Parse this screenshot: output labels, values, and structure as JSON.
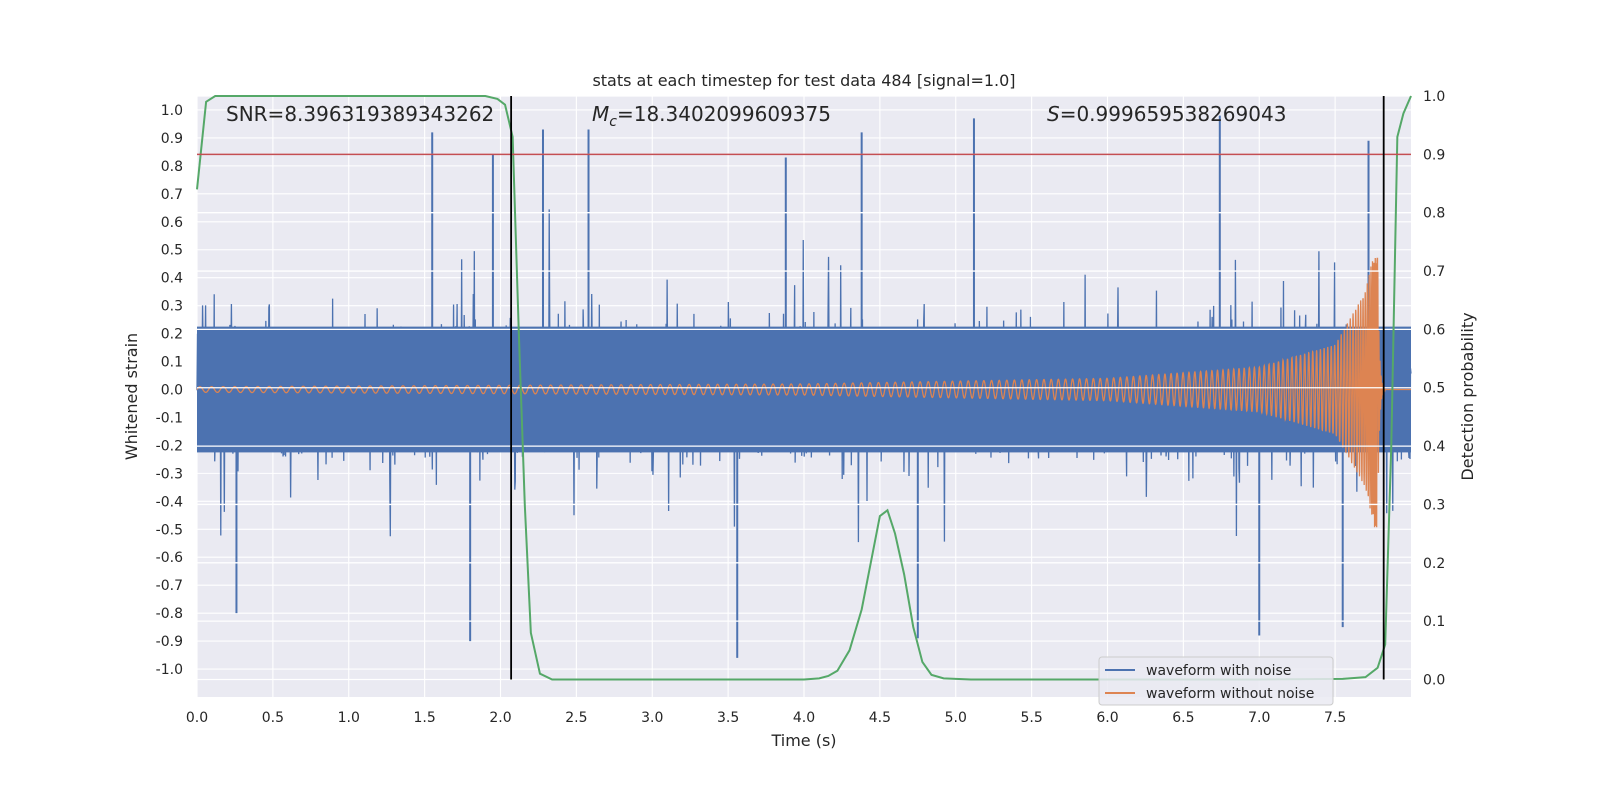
{
  "chart_data": {
    "type": "line",
    "title": "stats at each timestep for test data 484 [signal=1.0]",
    "xlabel": "Time (s)",
    "ylabel": "Whitened strain",
    "ylabel_right": "Detection probability",
    "xlim": [
      0.0,
      8.0
    ],
    "ylim": [
      -1.1,
      1.05
    ],
    "ylim_right": [
      -0.03,
      1.0
    ],
    "x_ticks": [
      "0.0",
      "0.5",
      "1.0",
      "1.5",
      "2.0",
      "2.5",
      "3.0",
      "3.5",
      "4.0",
      "4.5",
      "5.0",
      "5.5",
      "6.0",
      "6.5",
      "7.0",
      "7.5"
    ],
    "y_ticks": [
      "1.0",
      "0.9",
      "0.8",
      "0.7",
      "0.6",
      "0.5",
      "0.4",
      "0.3",
      "0.2",
      "0.1",
      "0.0",
      "-0.1",
      "-0.2",
      "-0.3",
      "-0.4",
      "-0.5",
      "-0.6",
      "-0.7",
      "-0.8",
      "-0.9",
      "-1.0"
    ],
    "y_ticks_right": [
      "1.0",
      "0.9",
      "0.8",
      "0.7",
      "0.6",
      "0.5",
      "0.4",
      "0.3",
      "0.2",
      "0.1",
      "0.0"
    ],
    "annotations": {
      "snr_prefix": "SNR=",
      "snr_value": "8.396319389343262",
      "mc_symbol": "M",
      "mc_subscript": "c",
      "mc_value": "=18.3402099609375",
      "s_symbol": "S",
      "s_value": "=0.999659538269043"
    },
    "threshold_line": {
      "axis": "right",
      "value": 0.9,
      "color": "#c44e52"
    },
    "vertical_lines": [
      2.07,
      7.82
    ],
    "noise_series": {
      "name": "waveform with noise",
      "color": "#4c72b0",
      "typical_amplitude": 0.45,
      "peaks": [
        {
          "x": 1.55,
          "y": 0.92
        },
        {
          "x": 1.95,
          "y": 0.84
        },
        {
          "x": 2.28,
          "y": 0.93
        },
        {
          "x": 2.58,
          "y": 0.93
        },
        {
          "x": 3.88,
          "y": 0.83
        },
        {
          "x": 4.38,
          "y": 0.92
        },
        {
          "x": 5.12,
          "y": 0.97
        },
        {
          "x": 6.74,
          "y": 0.98
        },
        {
          "x": 7.72,
          "y": 0.89
        },
        {
          "x": 1.8,
          "y": -0.9
        },
        {
          "x": 3.56,
          "y": -0.96
        },
        {
          "x": 4.75,
          "y": -0.89
        },
        {
          "x": 7.0,
          "y": -0.88
        },
        {
          "x": 7.55,
          "y": -0.85
        },
        {
          "x": 0.26,
          "y": -0.8
        }
      ]
    },
    "clean_series": {
      "name": "waveform without noise",
      "color": "#dd8452",
      "description_points": [
        {
          "x": 0.0,
          "amp": 0.01
        },
        {
          "x": 4.0,
          "amp": 0.02
        },
        {
          "x": 6.0,
          "amp": 0.04
        },
        {
          "x": 7.0,
          "amp": 0.08
        },
        {
          "x": 7.5,
          "amp": 0.16
        },
        {
          "x": 7.7,
          "amp": 0.35
        },
        {
          "x": 7.76,
          "amp": 0.5
        }
      ],
      "merger_time": 7.78
    },
    "probability_series": {
      "name": "detection probability",
      "color": "#55a868",
      "x": [
        0.0,
        0.06,
        0.12,
        0.2,
        0.4,
        1.0,
        1.5,
        1.9,
        1.98,
        2.03,
        2.08,
        2.12,
        2.16,
        2.2,
        2.26,
        2.34,
        2.5,
        3.0,
        3.5,
        4.0,
        4.1,
        4.16,
        4.22,
        4.3,
        4.38,
        4.44,
        4.5,
        4.55,
        4.6,
        4.66,
        4.72,
        4.78,
        4.84,
        4.92,
        5.1,
        6.0,
        7.0,
        7.55,
        7.7,
        7.78,
        7.83,
        7.87,
        7.91,
        7.95,
        8.0
      ],
      "y": [
        0.84,
        0.99,
        1.0,
        1.0,
        1.0,
        1.0,
        1.0,
        1.0,
        0.995,
        0.985,
        0.93,
        0.6,
        0.3,
        0.08,
        0.01,
        0.0,
        0.0,
        0.0,
        0.0,
        0.0,
        0.002,
        0.006,
        0.015,
        0.05,
        0.12,
        0.2,
        0.28,
        0.29,
        0.25,
        0.18,
        0.09,
        0.03,
        0.008,
        0.002,
        0.0,
        0.0,
        0.0,
        0.001,
        0.004,
        0.02,
        0.06,
        0.4,
        0.93,
        0.97,
        1.0
      ]
    },
    "legend": {
      "position": "lower right",
      "entries": [
        {
          "label": "waveform with noise",
          "color": "#4c72b0"
        },
        {
          "label": "waveform without noise",
          "color": "#dd8452"
        }
      ]
    },
    "grid": true
  }
}
